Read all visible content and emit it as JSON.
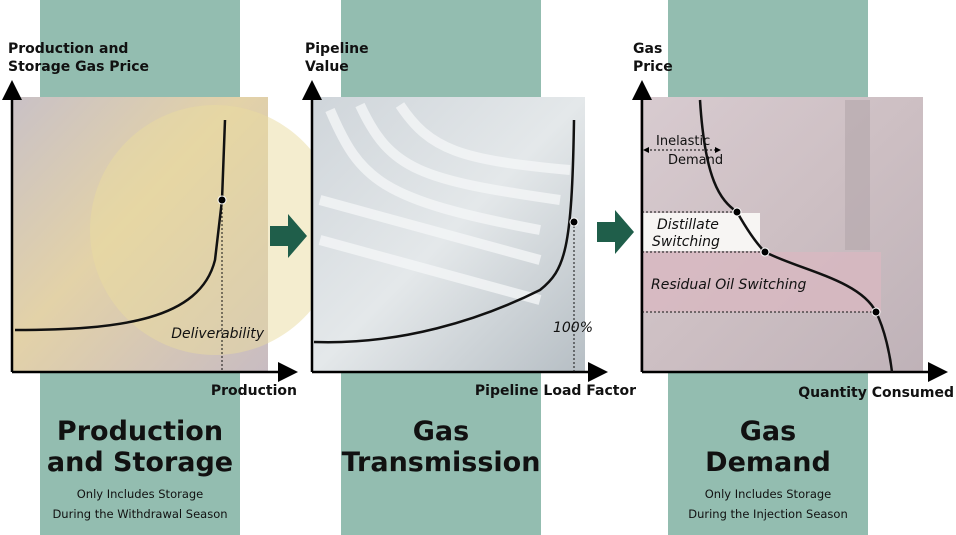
{
  "panels": [
    {
      "y_axis_label": [
        "Production and",
        "Storage Gas Price"
      ],
      "x_axis_label": "Production",
      "annotations": [
        "Deliverability"
      ],
      "title": [
        "Production",
        "and Storage"
      ],
      "subtitle": [
        "Only Includes Storage",
        "During the Withdrawal Season"
      ]
    },
    {
      "y_axis_label": [
        "Pipeline",
        "Value"
      ],
      "x_axis_label": "Pipeline Load Factor",
      "annotations": [
        "100%"
      ],
      "title": [
        "Gas",
        "Transmission"
      ]
    },
    {
      "y_axis_label": [
        "Gas",
        "Price"
      ],
      "x_axis_label": "Quantity Consumed",
      "annotations": [
        [
          "Inelastic",
          "Demand"
        ],
        [
          "Distillate",
          "Switching"
        ],
        "Residual Oil Switching"
      ],
      "title": [
        "Gas",
        "Demand"
      ],
      "subtitle": [
        "Only Includes Storage",
        "During the Injection Season"
      ]
    }
  ]
}
